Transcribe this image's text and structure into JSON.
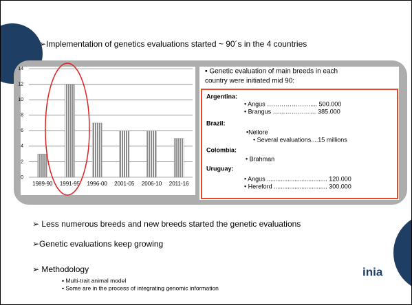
{
  "title": "➢Implementation of genetics evaluations started ~ 90´s in the 4 countries",
  "chart_data": {
    "type": "bar",
    "categories": [
      "1989-90",
      "1991-95",
      "1996-00",
      "2001-05",
      "2006-10",
      "2011-16"
    ],
    "values": [
      3,
      12,
      7,
      6,
      6,
      5
    ],
    "color": "#8c8c8c",
    "ylim": [
      0,
      14
    ],
    "yticks": [
      0,
      2,
      4,
      6,
      8,
      10,
      12,
      14
    ],
    "grid": true
  },
  "box": {
    "heading": [
      "▪ Genetic evaluation of main breeds in each",
      "country were initiated mid 90:"
    ],
    "countries": [
      {
        "name": "Argentina:",
        "lines": [
          "• Angus ………………….... 500.000",
          "• Brangus ………………… 385.000"
        ]
      },
      {
        "name": "Brazil:",
        "lines": [
          "•Nellore",
          "• Several evaluations....15 millions"
        ]
      },
      {
        "name": "Colombia:",
        "lines": [
          "• Brahman"
        ]
      },
      {
        "name": "Uruguay:",
        "lines": [
          "• Angus ................................... 120.000",
          "• Hereford ............................... 300.000"
        ]
      }
    ]
  },
  "bullets": [
    "➢ Less numerous breeds and new breeds started the genetic evaluations",
    "➢Genetic evaluations keep growing",
    "➢ Methodology"
  ],
  "sub_bullets": [
    "▪ Multi-trait animal model",
    "▪ Some are in the process of integrating genomic information"
  ],
  "logo": "inia"
}
